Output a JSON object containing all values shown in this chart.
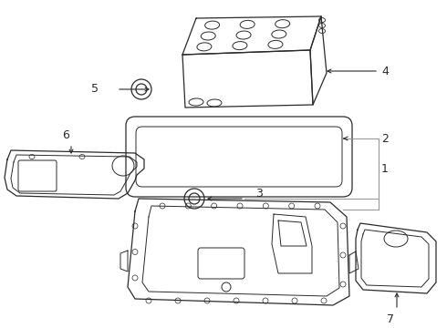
{
  "bg_color": "#ffffff",
  "line_color": "#2a2a2a",
  "gray_line": "#999999",
  "figsize": [
    4.9,
    3.6
  ],
  "dpi": 100
}
